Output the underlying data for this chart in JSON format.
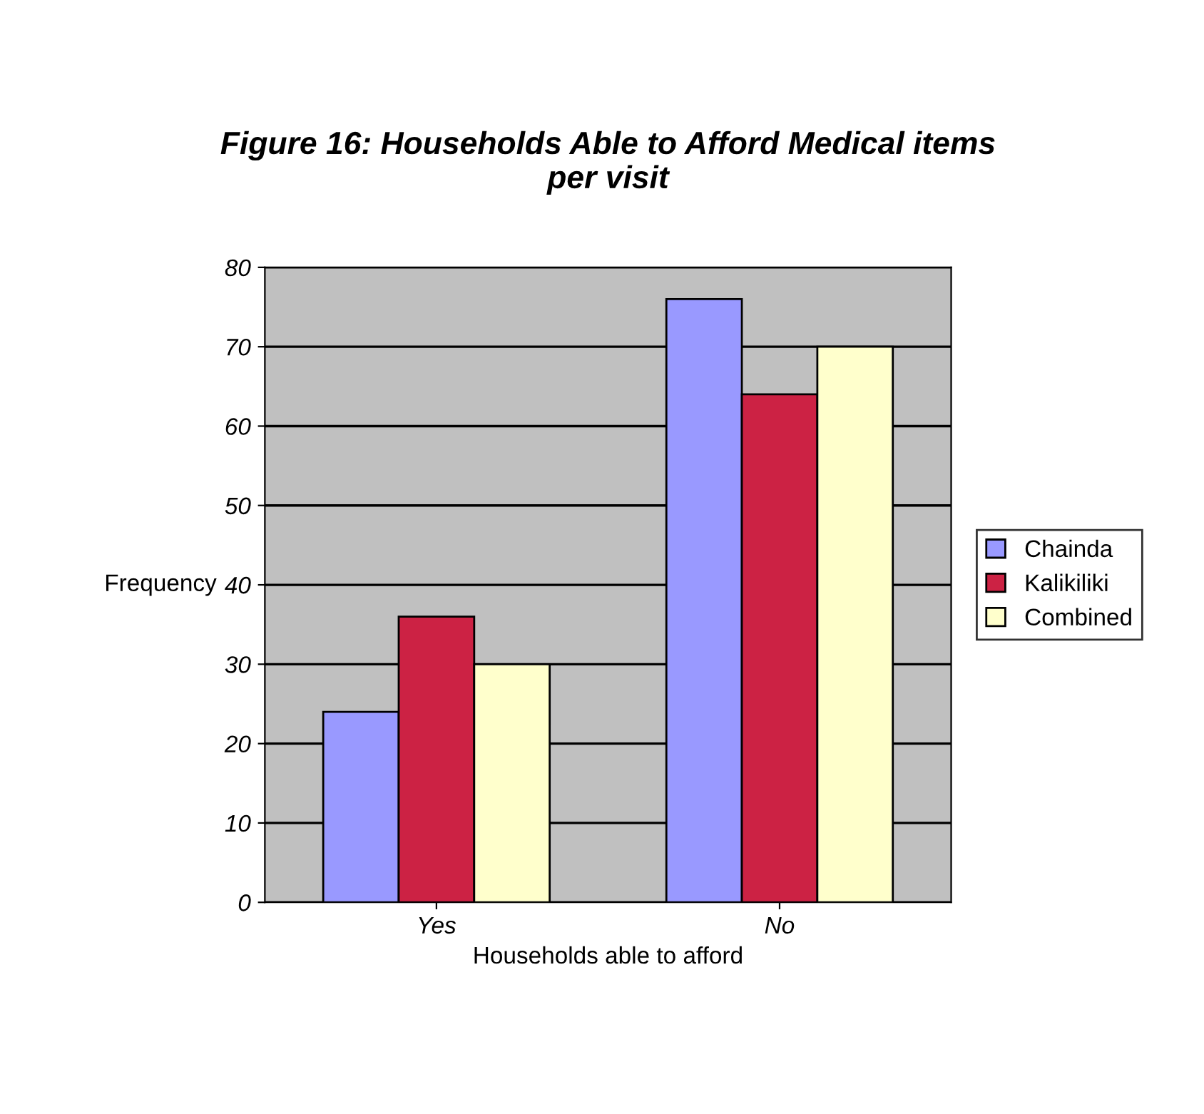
{
  "chart_data": {
    "type": "bar",
    "title": "Figure 16: Households Able to Afford Medical items\nper visit",
    "xlabel": "Households able to afford",
    "ylabel": "Frequency",
    "categories": [
      "Yes",
      "No"
    ],
    "series": [
      {
        "name": "Chainda",
        "color": "#9999ff",
        "values": [
          24,
          76
        ]
      },
      {
        "name": "Kalikiliki",
        "color": "#cc2244",
        "values": [
          36,
          64
        ]
      },
      {
        "name": "Combined",
        "color": "#ffffcc",
        "values": [
          30,
          70
        ]
      }
    ],
    "ylim": [
      0,
      80
    ],
    "yticks": [
      0,
      10,
      20,
      30,
      40,
      50,
      60,
      70,
      80
    ],
    "grid": "y",
    "legend": "right"
  }
}
